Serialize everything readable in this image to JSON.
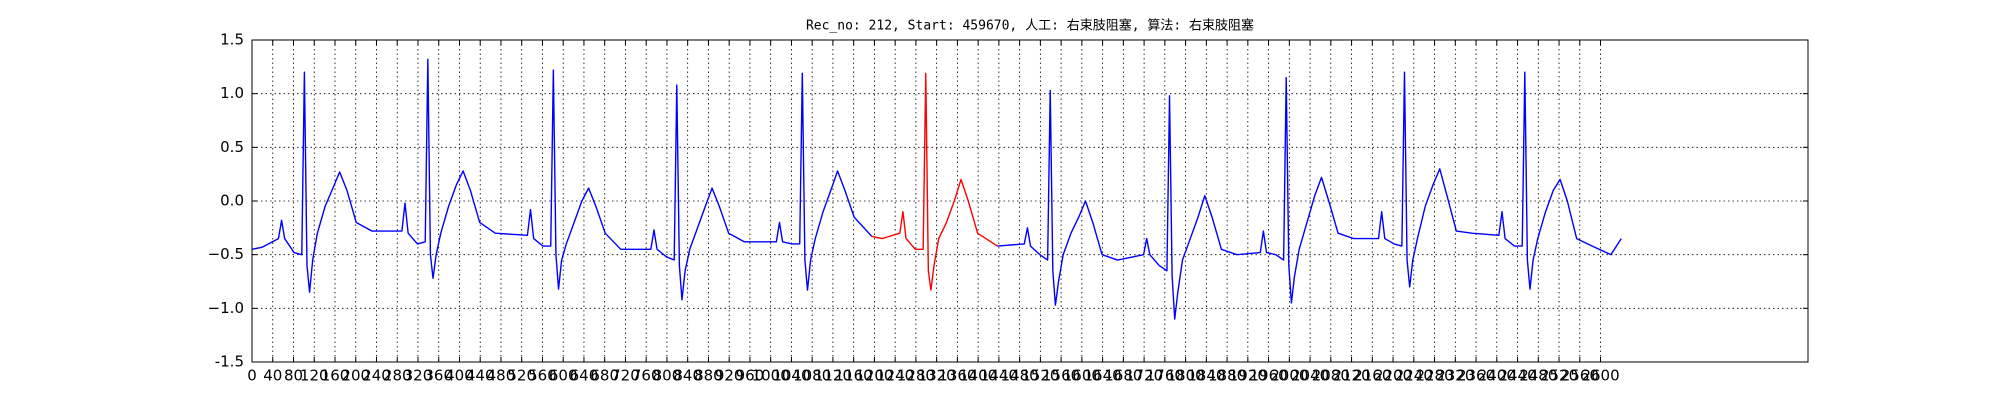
{
  "chart_data": {
    "type": "line",
    "title": "Rec_no: 212, Start: 459670, 人工: 右束肢阻塞, 算法: 右束肢阻塞",
    "xlim": [
      0,
      3000
    ],
    "ylim": [
      -1.5,
      1.5
    ],
    "xticks": [
      0,
      40,
      80,
      120,
      160,
      200,
      240,
      280,
      320,
      360,
      400,
      440,
      480,
      520,
      560,
      600,
      640,
      680,
      720,
      760,
      800,
      840,
      880,
      920,
      960,
      1000,
      1040,
      1080,
      1120,
      1160,
      1200,
      1240,
      1280,
      1320,
      1360,
      1400,
      1440,
      1480,
      1520,
      1560,
      1600,
      1640,
      1680,
      1720,
      1760,
      1800,
      1840,
      1880,
      1920,
      1960,
      2000,
      2040,
      2080,
      2120,
      2160,
      2200,
      2240,
      2280,
      2320,
      2360,
      2400,
      2440,
      2480,
      2520,
      2560,
      2600
    ],
    "yticks": [
      -1.5,
      {
        "value": -1.5,
        "label": "−1.5"
      },
      {
        "value": -1.0,
        "label": "−1.0"
      },
      {
        "value": -0.5,
        "label": "−0.5"
      },
      {
        "value": 0.0,
        "label": "0.0"
      },
      0.5,
      {
        "value": 1.0,
        "label": "1.0"
      },
      1.5
    ],
    "grid": true,
    "series": [
      {
        "color": "#0000ff",
        "x": [
          0,
          20,
          51,
          57,
          63,
          81,
          96,
          101,
          106,
          111,
          117,
          126,
          141,
          156,
          169,
          183,
          201,
          231,
          289,
          295,
          301,
          319,
          334,
          339,
          344,
          349,
          355,
          364,
          379,
          394,
          407,
          421,
          439,
          469,
          531,
          537,
          543,
          561,
          576,
          581,
          586,
          591,
          597,
          606,
          621,
          636,
          649,
          663,
          681,
          711,
          769,
          775,
          781,
          799,
          814,
          819,
          824,
          829,
          835,
          844,
          859,
          874,
          887,
          901,
          919,
          949,
          1011,
          1017,
          1023,
          1041,
          1056,
          1061,
          1066,
          1071,
          1077,
          1086,
          1101,
          1116,
          1129,
          1143,
          1161,
          1195,
          1215,
          1249,
          1255,
          1261,
          1279,
          1294,
          1299,
          1304,
          1309,
          1315,
          1324,
          1339,
          1354,
          1367,
          1381,
          1399,
          1437,
          1489,
          1495,
          1501,
          1519,
          1534,
          1539,
          1544,
          1549,
          1555,
          1564,
          1579,
          1594,
          1607,
          1621,
          1639,
          1669,
          1719,
          1725,
          1731,
          1749,
          1764,
          1769,
          1774,
          1779,
          1785,
          1794,
          1809,
          1824,
          1837,
          1851,
          1869,
          1899,
          1944,
          1950,
          1956,
          1974,
          1989,
          1994,
          1999,
          2004,
          2010,
          2019,
          2034,
          2049,
          2062,
          2076,
          2094,
          2124,
          2172,
          2178,
          2184,
          2202,
          2217,
          2222,
          2227,
          2232,
          2238,
          2247,
          2262,
          2277,
          2290,
          2304,
          2322,
          2352,
          2404,
          2410,
          2416,
          2434,
          2449,
          2454,
          2459,
          2464,
          2470,
          2479,
          2494,
          2509,
          2522,
          2536,
          2554,
          2584,
          2620,
          2640
        ],
        "values": [
          -0.45,
          -0.43,
          -0.35,
          -0.18,
          -0.35,
          -0.48,
          -0.5,
          1.2,
          -0.6,
          -0.85,
          -0.55,
          -0.3,
          -0.05,
          0.12,
          0.27,
          0.1,
          -0.2,
          -0.28,
          -0.28,
          -0.02,
          -0.3,
          -0.4,
          -0.38,
          1.32,
          -0.5,
          -0.72,
          -0.5,
          -0.3,
          -0.05,
          0.15,
          0.28,
          0.1,
          -0.2,
          -0.3,
          -0.32,
          -0.08,
          -0.35,
          -0.42,
          -0.42,
          1.22,
          -0.5,
          -0.82,
          -0.55,
          -0.4,
          -0.2,
          0,
          0.12,
          -0.05,
          -0.3,
          -0.45,
          -0.45,
          -0.27,
          -0.45,
          -0.52,
          -0.55,
          1.08,
          -0.6,
          -0.92,
          -0.65,
          -0.45,
          -0.25,
          -0.05,
          0.12,
          -0.05,
          -0.3,
          -0.38,
          -0.38,
          -0.2,
          -0.38,
          -0.4,
          -0.4,
          1.19,
          -0.55,
          -0.83,
          -0.55,
          -0.35,
          -0.1,
          0.1,
          0.28,
          0.1,
          -0.15,
          -0.33,
          null,
          null,
          null,
          null,
          null,
          null,
          null,
          null,
          null,
          null,
          null,
          null,
          null,
          null,
          null,
          null,
          -0.42,
          -0.4,
          -0.25,
          -0.42,
          -0.5,
          -0.55,
          1.03,
          -0.65,
          -0.97,
          -0.75,
          -0.5,
          -0.3,
          -0.15,
          0,
          -0.2,
          -0.5,
          -0.55,
          -0.5,
          -0.35,
          -0.5,
          -0.6,
          -0.65,
          0.98,
          -0.7,
          -1.1,
          -0.85,
          -0.55,
          -0.35,
          -0.15,
          0.05,
          -0.15,
          -0.45,
          -0.5,
          -0.48,
          -0.28,
          -0.48,
          -0.5,
          -0.55,
          1.15,
          -0.6,
          -0.95,
          -0.7,
          -0.45,
          -0.2,
          0.05,
          0.22,
          0,
          -0.3,
          -0.35,
          -0.35,
          -0.1,
          -0.35,
          -0.4,
          -0.42,
          1.2,
          -0.55,
          -0.8,
          -0.55,
          -0.35,
          -0.05,
          0.15,
          0.3,
          0.05,
          -0.28,
          -0.3,
          -0.32,
          -0.1,
          -0.35,
          -0.42,
          -0.42,
          1.2,
          -0.55,
          -0.82,
          -0.55,
          -0.35,
          -0.1,
          0.1,
          0.2,
          0,
          -0.35,
          -0.42,
          -0.5,
          -0.35
        ]
      },
      {
        "color": "#ff0000",
        "x": [
          1195,
          1215,
          1249,
          1255,
          1261,
          1279,
          1294,
          1299,
          1304,
          1309,
          1315,
          1324,
          1339,
          1354,
          1367,
          1381,
          1399,
          1437
        ],
        "values": [
          -0.33,
          -0.35,
          -0.3,
          -0.1,
          -0.35,
          -0.45,
          -0.45,
          1.19,
          -0.65,
          -0.83,
          -0.6,
          -0.35,
          -0.2,
          0,
          0.2,
          0,
          -0.3,
          -0.42
        ]
      }
    ]
  }
}
